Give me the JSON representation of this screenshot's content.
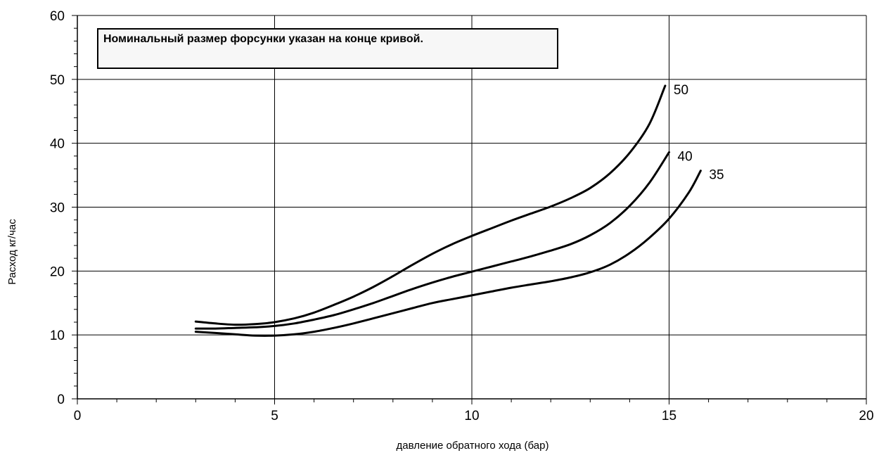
{
  "chart_data": {
    "type": "line",
    "xlabel": "давление обратного хода (бар)",
    "ylabel": "Расход кг/час",
    "xlim": [
      0,
      20
    ],
    "ylim": [
      0,
      60
    ],
    "x_ticks": [
      0,
      5,
      10,
      15,
      20
    ],
    "y_ticks": [
      0,
      10,
      20,
      30,
      40,
      50,
      60
    ],
    "x_minor_step": 1,
    "y_minor_step": 2,
    "grid": true,
    "annotation": "Номинальный размер форсунки указан на конце кривой.",
    "series": [
      {
        "name": "50",
        "color": "#000000",
        "points": [
          [
            3.0,
            12.1
          ],
          [
            3.5,
            11.8
          ],
          [
            4.0,
            11.6
          ],
          [
            4.5,
            11.7
          ],
          [
            5.0,
            12.0
          ],
          [
            5.5,
            12.6
          ],
          [
            6.0,
            13.5
          ],
          [
            6.5,
            14.7
          ],
          [
            7.0,
            16.0
          ],
          [
            7.5,
            17.5
          ],
          [
            8.0,
            19.2
          ],
          [
            8.5,
            21.0
          ],
          [
            9.0,
            22.7
          ],
          [
            9.5,
            24.2
          ],
          [
            10.0,
            25.5
          ],
          [
            10.5,
            26.7
          ],
          [
            11.0,
            27.9
          ],
          [
            11.5,
            29.0
          ],
          [
            12.0,
            30.1
          ],
          [
            12.5,
            31.4
          ],
          [
            13.0,
            33.0
          ],
          [
            13.5,
            35.3
          ],
          [
            14.0,
            38.5
          ],
          [
            14.5,
            43.0
          ],
          [
            14.9,
            49.0
          ]
        ]
      },
      {
        "name": "40",
        "color": "#000000",
        "points": [
          [
            3.0,
            11.0
          ],
          [
            3.5,
            11.0
          ],
          [
            4.0,
            11.1
          ],
          [
            4.5,
            11.2
          ],
          [
            5.0,
            11.4
          ],
          [
            5.5,
            11.8
          ],
          [
            6.0,
            12.4
          ],
          [
            6.5,
            13.1
          ],
          [
            7.0,
            14.0
          ],
          [
            7.5,
            15.0
          ],
          [
            8.0,
            16.1
          ],
          [
            8.5,
            17.2
          ],
          [
            9.0,
            18.2
          ],
          [
            9.5,
            19.1
          ],
          [
            10.0,
            19.9
          ],
          [
            10.5,
            20.7
          ],
          [
            11.0,
            21.5
          ],
          [
            11.5,
            22.3
          ],
          [
            12.0,
            23.2
          ],
          [
            12.5,
            24.2
          ],
          [
            13.0,
            25.6
          ],
          [
            13.5,
            27.5
          ],
          [
            14.0,
            30.2
          ],
          [
            14.5,
            33.8
          ],
          [
            15.0,
            38.6
          ]
        ]
      },
      {
        "name": "35",
        "color": "#000000",
        "points": [
          [
            3.0,
            10.5
          ],
          [
            3.5,
            10.3
          ],
          [
            4.0,
            10.1
          ],
          [
            4.5,
            9.9
          ],
          [
            5.0,
            9.9
          ],
          [
            5.5,
            10.1
          ],
          [
            6.0,
            10.5
          ],
          [
            6.5,
            11.1
          ],
          [
            7.0,
            11.8
          ],
          [
            7.5,
            12.6
          ],
          [
            8.0,
            13.4
          ],
          [
            8.5,
            14.2
          ],
          [
            9.0,
            15.0
          ],
          [
            9.5,
            15.6
          ],
          [
            10.0,
            16.2
          ],
          [
            10.5,
            16.8
          ],
          [
            11.0,
            17.4
          ],
          [
            11.5,
            17.9
          ],
          [
            12.0,
            18.4
          ],
          [
            12.5,
            19.0
          ],
          [
            13.0,
            19.8
          ],
          [
            13.5,
            21.0
          ],
          [
            14.0,
            22.8
          ],
          [
            14.5,
            25.2
          ],
          [
            15.0,
            28.2
          ],
          [
            15.5,
            32.3
          ],
          [
            15.8,
            35.7
          ]
        ]
      }
    ]
  }
}
